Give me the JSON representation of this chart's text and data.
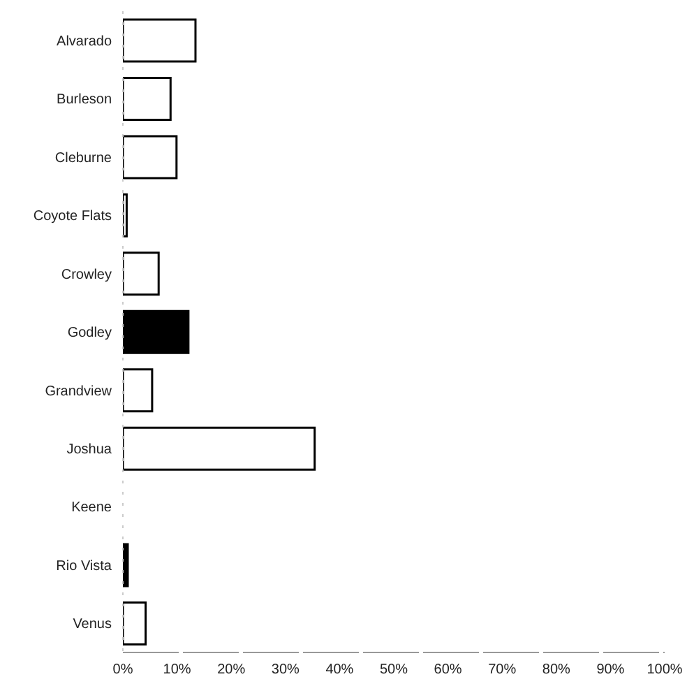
{
  "chart_data": {
    "type": "bar",
    "orientation": "horizontal",
    "categories": [
      "Alvarado",
      "Burleson",
      "Cleburne",
      "Coyote Flats",
      "Crowley",
      "Godley",
      "Grandview",
      "Joshua",
      "Keene",
      "Rio Vista",
      "Venus"
    ],
    "values": [
      13.4,
      8.8,
      9.9,
      0.7,
      6.6,
      12.1,
      5.4,
      35.4,
      0,
      0.9,
      4.2
    ],
    "colors": [
      "#ffffff",
      "#ffffff",
      "#ffffff",
      "#ffffff",
      "#ffffff",
      "#000000",
      "#ffffff",
      "#ffffff",
      "#ffffff",
      "#000000",
      "#ffffff"
    ],
    "xlim": [
      0,
      100
    ],
    "xticks": [
      {
        "value": 0,
        "label": "0%"
      },
      {
        "value": 10,
        "label": "10%"
      },
      {
        "value": 20,
        "label": "20%"
      },
      {
        "value": 30,
        "label": "30%"
      },
      {
        "value": 40,
        "label": "40%"
      },
      {
        "value": 50,
        "label": "50%"
      },
      {
        "value": 60,
        "label": "60%"
      },
      {
        "value": 70,
        "label": "70%"
      },
      {
        "value": 80,
        "label": "80%"
      },
      {
        "value": 90,
        "label": "90%"
      },
      {
        "value": 100,
        "label": "100%"
      }
    ],
    "grid": false,
    "legend": false
  }
}
